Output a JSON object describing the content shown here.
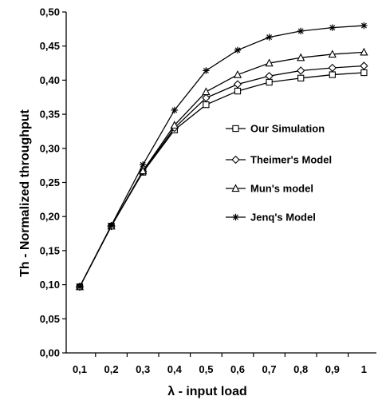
{
  "chart_data": {
    "type": "line",
    "xlabel": "λ - input load",
    "ylabel": "Th - Normalized throughput",
    "ylim": [
      0,
      0.5
    ],
    "x": [
      "0,1",
      "0,2",
      "0,3",
      "0,4",
      "0,5",
      "0,6",
      "0,7",
      "0,8",
      "0,9",
      "1"
    ],
    "y_ticks": [
      "0,00",
      "0,05",
      "0,10",
      "0,15",
      "0,20",
      "0,25",
      "0,30",
      "0,35",
      "0,40",
      "0,45",
      "0,50"
    ],
    "grid": false,
    "legend_position": "inside-right",
    "series": [
      {
        "name": "Our Simulation",
        "marker": "square",
        "color": "#000000",
        "values": [
          0.097,
          0.186,
          0.265,
          0.327,
          0.364,
          0.384,
          0.397,
          0.403,
          0.408,
          0.411
        ]
      },
      {
        "name": "Theimer's Model",
        "marker": "diamond",
        "color": "#000000",
        "values": [
          0.097,
          0.186,
          0.266,
          0.33,
          0.374,
          0.394,
          0.406,
          0.414,
          0.418,
          0.421
        ]
      },
      {
        "name": "Mun's model",
        "marker": "triangle",
        "color": "#000000",
        "values": [
          0.097,
          0.186,
          0.267,
          0.334,
          0.383,
          0.408,
          0.425,
          0.433,
          0.438,
          0.441
        ]
      },
      {
        "name": "Jenq's Model",
        "marker": "star",
        "color": "#000000",
        "values": [
          0.097,
          0.187,
          0.276,
          0.356,
          0.414,
          0.444,
          0.463,
          0.472,
          0.477,
          0.48
        ]
      }
    ]
  }
}
